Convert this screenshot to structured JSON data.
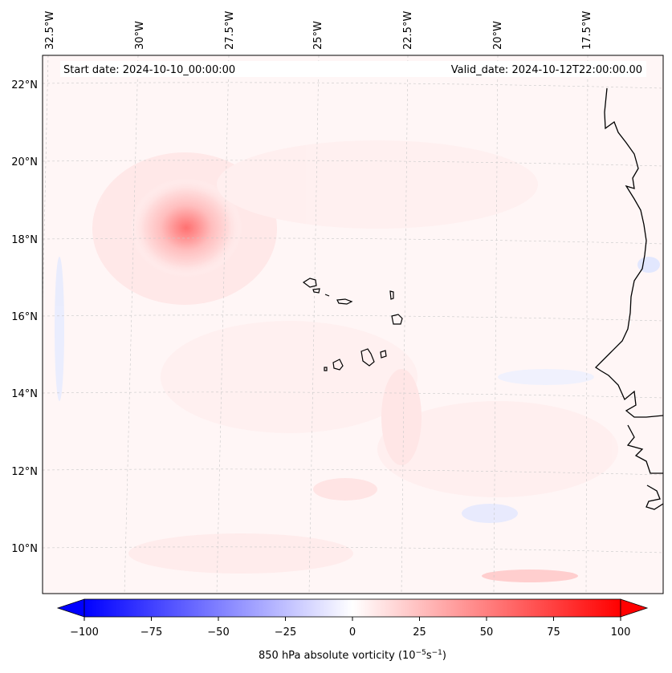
{
  "map": {
    "start_date": "Start date: 2024-10-10_00:00:00",
    "valid_date": "Valid_date: 2024-10-12T22:00:00.00",
    "longitude_labels": [
      "32.5°W",
      "30°W",
      "27.5°W",
      "25°W",
      "22.5°W",
      "20°W",
      "17.5°W"
    ],
    "latitude_labels": [
      "22°N",
      "20°N",
      "18°N",
      "16°N",
      "14°N",
      "12°N",
      "10°N"
    ],
    "features": {
      "cyclone_center_lon": -28.5,
      "cyclone_center_lat": 18.4,
      "islands": "Cape Verde",
      "coastline": "West Africa"
    }
  },
  "colorbar": {
    "label": "850 hPa absolute vorticity (10",
    "label_exp1": "−5",
    "label_mid": "s",
    "label_exp2": "−1",
    "label_end": ")",
    "ticks": [
      "−100",
      "−75",
      "−50",
      "−25",
      "0",
      "25",
      "50",
      "75",
      "100"
    ],
    "min": -100,
    "max": 100,
    "colormap": "bwr",
    "low_color": "#0000ff",
    "mid_color": "#ffffff",
    "high_color": "#ff0000"
  }
}
